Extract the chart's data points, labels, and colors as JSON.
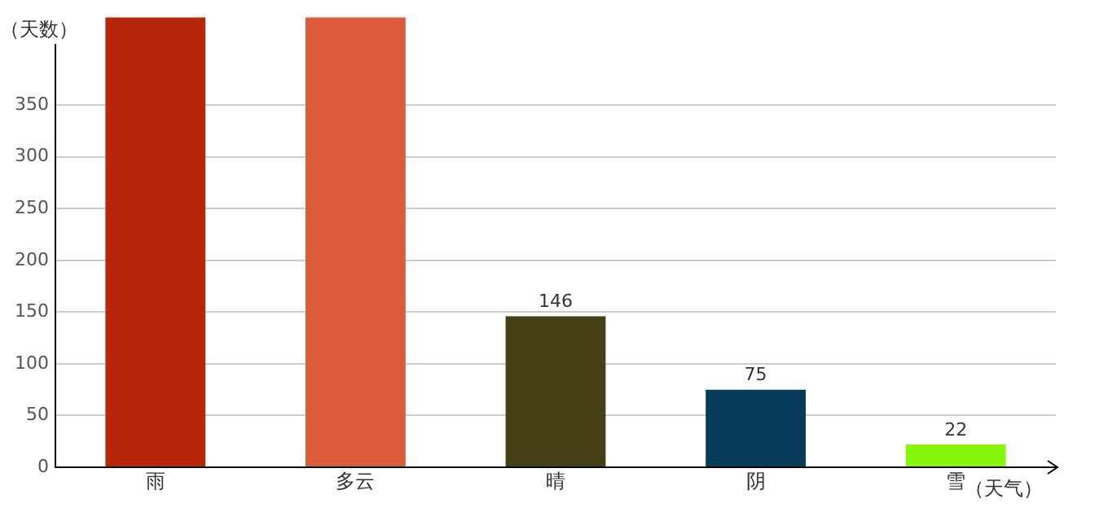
{
  "chart_data": {
    "type": "bar",
    "xlabel": "（天气）",
    "ylabel": "（天数）",
    "categories": [
      "雨",
      "多云",
      "晴",
      "阴",
      "雪"
    ],
    "values": [
      435,
      435,
      146,
      75,
      22
    ],
    "colors": [
      "#b8260a",
      "#db5b3b",
      "#464016",
      "#073c5a",
      "#86f70a"
    ],
    "value_labels": [
      null,
      null,
      "146",
      "75",
      "22"
    ],
    "ylim": [
      0,
      435
    ],
    "yticks": [
      0,
      50,
      100,
      150,
      200,
      250,
      300,
      350
    ],
    "grid": "y",
    "legend": false
  }
}
